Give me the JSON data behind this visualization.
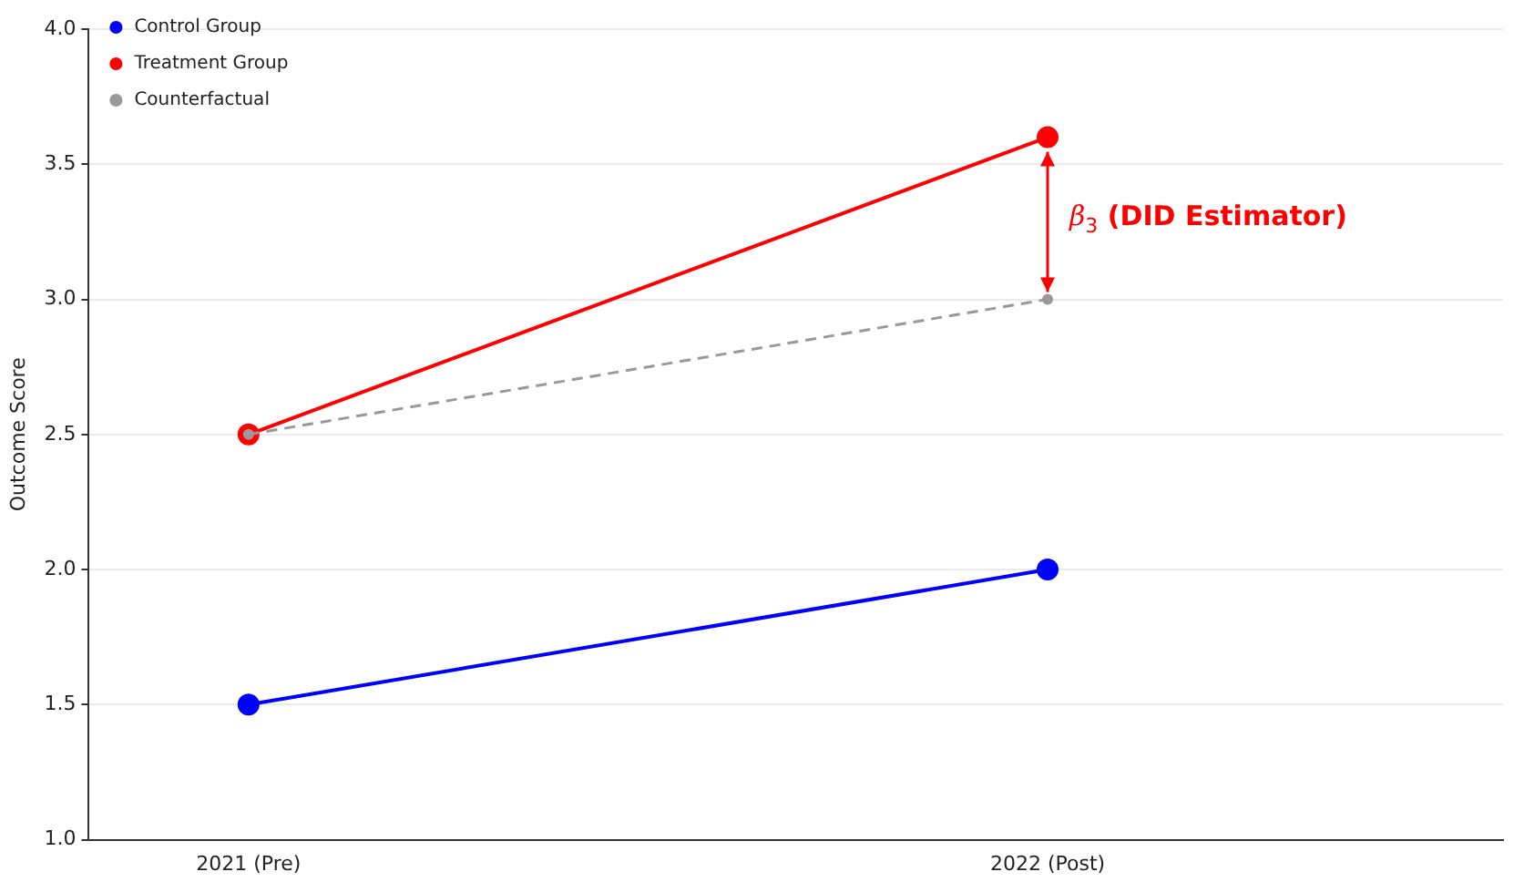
{
  "chart_data": {
    "type": "line",
    "ylabel": "Outcome Score",
    "categories": [
      "2021 (Pre)",
      "2022 (Post)"
    ],
    "series": [
      {
        "name": "Control Group",
        "color": "#0000ff",
        "values": [
          1.5,
          2.0
        ],
        "marker": "circle"
      },
      {
        "name": "Treatment Group",
        "color": "#ff0000",
        "values": [
          2.5,
          3.6
        ],
        "marker": "circle"
      },
      {
        "name": "Counterfactual",
        "color": "#999999",
        "values": [
          2.5,
          3.0
        ],
        "marker": "circle",
        "line_style": "dashed"
      }
    ],
    "ylim": [
      1.0,
      4.0
    ],
    "yticks": [
      {
        "value": 1,
        "label": "1.0"
      },
      {
        "value": 1.5,
        "label": "1.5"
      },
      {
        "value": 2,
        "label": "2.0"
      },
      {
        "value": 2.5,
        "label": "2.5"
      },
      {
        "value": 3,
        "label": "3.0"
      },
      {
        "value": 3.5,
        "label": "3.5"
      },
      {
        "value": 4,
        "label": "4.0"
      }
    ],
    "grid": "y",
    "legend": "top left",
    "annotations": [
      "β$_{3}$ (DID Estimator)"
    ]
  }
}
